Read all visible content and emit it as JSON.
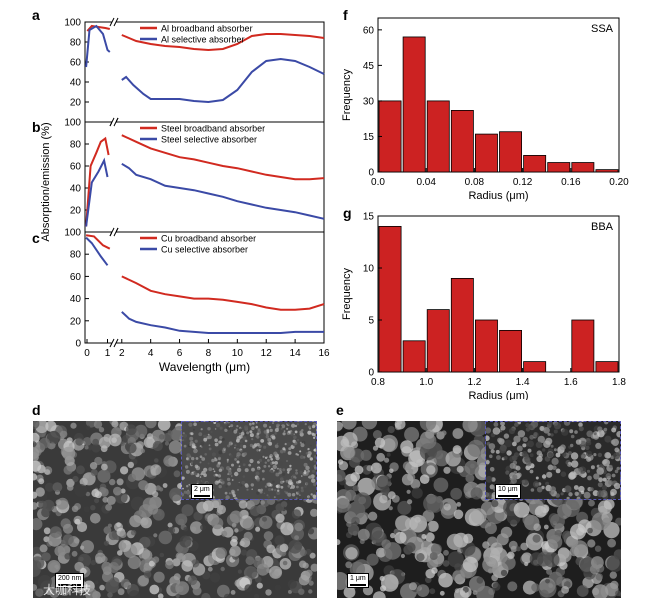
{
  "colors": {
    "red": "#d12a20",
    "blue": "#3b4aa6",
    "bar_fill": "#cc2222",
    "bar_stroke": "#000000"
  },
  "panels": {
    "a": "a",
    "b": "b",
    "c": "c",
    "d": "d",
    "e": "e",
    "f": "f",
    "g": "g"
  },
  "chart_data": [
    {
      "id": "abs_a",
      "type": "line",
      "panel": "a",
      "ylabel": "Absorption/emission (%)",
      "ylim": [
        0,
        100
      ],
      "yticks": [
        0,
        20,
        40,
        60,
        80,
        100
      ],
      "xlim": [
        0,
        16
      ],
      "series": [
        {
          "name": "Al broadband absorber",
          "color": "red",
          "segments": [
            [
              [
                0.1,
                91
              ],
              [
                0.3,
                96
              ],
              [
                0.6,
                95
              ],
              [
                0.9,
                94
              ],
              [
                1.1,
                93
              ]
            ],
            [
              [
                2,
                87
              ],
              [
                2.5,
                84
              ],
              [
                3,
                81
              ],
              [
                4,
                78
              ],
              [
                5,
                76
              ],
              [
                6,
                75
              ],
              [
                7,
                73
              ],
              [
                8,
                72
              ],
              [
                9,
                73
              ],
              [
                10,
                78
              ],
              [
                11,
                86
              ],
              [
                12,
                88
              ],
              [
                13,
                88
              ],
              [
                14,
                87
              ],
              [
                15,
                86
              ],
              [
                16,
                84
              ]
            ]
          ]
        },
        {
          "name": "Al selective absorber",
          "color": "blue",
          "segments": [
            [
              [
                0.05,
                55
              ],
              [
                0.2,
                92
              ],
              [
                0.5,
                96
              ],
              [
                0.8,
                88
              ],
              [
                1.0,
                72
              ],
              [
                1.1,
                70
              ]
            ],
            [
              [
                2,
                42
              ],
              [
                2.3,
                45
              ],
              [
                2.8,
                37
              ],
              [
                3.5,
                28
              ],
              [
                4,
                23
              ],
              [
                5,
                23
              ],
              [
                6,
                23
              ],
              [
                7,
                21
              ],
              [
                8,
                20
              ],
              [
                9,
                22
              ],
              [
                10,
                32
              ],
              [
                11,
                50
              ],
              [
                12,
                61
              ],
              [
                13,
                63
              ],
              [
                14,
                61
              ],
              [
                15,
                55
              ],
              [
                16,
                48
              ]
            ]
          ]
        }
      ]
    },
    {
      "id": "abs_b",
      "type": "line",
      "panel": "b",
      "ylim": [
        0,
        100
      ],
      "yticks": [
        0,
        20,
        40,
        60,
        80,
        100
      ],
      "xlim": [
        0,
        16
      ],
      "series": [
        {
          "name": "Steel broadband absorber",
          "color": "red",
          "segments": [
            [
              [
                0.05,
                5
              ],
              [
                0.25,
                60
              ],
              [
                0.5,
                72
              ],
              [
                0.7,
                82
              ],
              [
                0.9,
                85
              ],
              [
                1.05,
                70
              ]
            ],
            [
              [
                2,
                88
              ],
              [
                3,
                82
              ],
              [
                4,
                76
              ],
              [
                5,
                72
              ],
              [
                6,
                68
              ],
              [
                7,
                66
              ],
              [
                8,
                63
              ],
              [
                9,
                60
              ],
              [
                10,
                58
              ],
              [
                11,
                55
              ],
              [
                12,
                52
              ],
              [
                13,
                50
              ],
              [
                14,
                48
              ],
              [
                15,
                48
              ],
              [
                16,
                49
              ]
            ]
          ]
        },
        {
          "name": "Steel selective absorber",
          "color": "blue",
          "segments": [
            [
              [
                0.05,
                5
              ],
              [
                0.3,
                45
              ],
              [
                0.6,
                55
              ],
              [
                0.85,
                65
              ],
              [
                1.0,
                50
              ]
            ],
            [
              [
                2,
                62
              ],
              [
                2.5,
                58
              ],
              [
                3,
                52
              ],
              [
                4,
                48
              ],
              [
                5,
                42
              ],
              [
                6,
                40
              ],
              [
                7,
                38
              ],
              [
                8,
                35
              ],
              [
                9,
                32
              ],
              [
                10,
                28
              ],
              [
                11,
                25
              ],
              [
                12,
                22
              ],
              [
                13,
                20
              ],
              [
                14,
                18
              ],
              [
                15,
                15
              ],
              [
                16,
                12
              ]
            ]
          ]
        }
      ]
    },
    {
      "id": "abs_c",
      "type": "line",
      "panel": "c",
      "ylim": [
        0,
        100
      ],
      "yticks": [
        0,
        20,
        40,
        60,
        80,
        100
      ],
      "xlim": [
        0,
        16
      ],
      "xticks": [
        0,
        2,
        4,
        6,
        8,
        10,
        12,
        14,
        16
      ],
      "xlabel": "Wavelength (μm)",
      "series": [
        {
          "name": "Cu broadband absorber",
          "color": "red",
          "segments": [
            [
              [
                0.05,
                97
              ],
              [
                0.4,
                96
              ],
              [
                0.8,
                88
              ],
              [
                1.1,
                85
              ]
            ],
            [
              [
                2,
                60
              ],
              [
                3,
                54
              ],
              [
                4,
                47
              ],
              [
                5,
                44
              ],
              [
                6,
                42
              ],
              [
                7,
                40
              ],
              [
                8,
                40
              ],
              [
                9,
                39
              ],
              [
                10,
                37
              ],
              [
                11,
                35
              ],
              [
                12,
                32
              ],
              [
                13,
                30
              ],
              [
                14,
                30
              ],
              [
                15,
                31
              ],
              [
                16,
                35
              ]
            ]
          ]
        },
        {
          "name": "Cu selective absorber",
          "color": "blue",
          "segments": [
            [
              [
                0.05,
                95
              ],
              [
                0.3,
                90
              ],
              [
                0.7,
                78
              ],
              [
                1.0,
                70
              ]
            ],
            [
              [
                2,
                28
              ],
              [
                2.5,
                22
              ],
              [
                3,
                19
              ],
              [
                4,
                16
              ],
              [
                5,
                14
              ],
              [
                6,
                11
              ],
              [
                7,
                10
              ],
              [
                8,
                9
              ],
              [
                9,
                9
              ],
              [
                10,
                9
              ],
              [
                11,
                9
              ],
              [
                12,
                9
              ],
              [
                13,
                9
              ],
              [
                14,
                10
              ],
              [
                15,
                10
              ],
              [
                16,
                10
              ]
            ]
          ]
        }
      ]
    },
    {
      "id": "hist_f",
      "type": "bar",
      "panel": "f",
      "title": "SSA",
      "xlabel": "Radius (μm)",
      "ylabel": "Frequency",
      "xlim": [
        0,
        0.2
      ],
      "ylim": [
        0,
        65
      ],
      "xticks": [
        "0.0",
        "0.04",
        "0.08",
        "0.12",
        "0.16",
        "0.20"
      ],
      "yticks": [
        0,
        15,
        30,
        45,
        60
      ],
      "bin_starts": [
        0,
        0.02,
        0.04,
        0.06,
        0.08,
        0.1,
        0.12,
        0.14,
        0.16,
        0.18
      ],
      "bin_width": 0.02,
      "values": [
        30,
        57,
        30,
        26,
        16,
        17,
        7,
        4,
        4,
        1
      ]
    },
    {
      "id": "hist_g",
      "type": "bar",
      "panel": "g",
      "title": "BBA",
      "xlabel": "Radius (μm)",
      "ylabel": "Frequency",
      "xlim": [
        0.8,
        1.8
      ],
      "ylim": [
        0,
        15
      ],
      "xticks": [
        "0.8",
        "1.0",
        "1.2",
        "1.4",
        "1.6",
        "1.8"
      ],
      "yticks": [
        0,
        5,
        10,
        15
      ],
      "bin_starts": [
        0.8,
        0.9,
        1.0,
        1.1,
        1.2,
        1.3,
        1.4,
        1.5,
        1.6,
        1.7
      ],
      "bin_width": 0.1,
      "values": [
        14,
        3,
        6,
        9,
        5,
        4,
        1,
        0,
        5,
        1
      ]
    }
  ],
  "sem": {
    "d_scale": "200 nm",
    "d_inset_scale": "2 μm",
    "e_scale": "1 μm",
    "e_inset_scale": "10 μm"
  },
  "watermark": "大咖科技"
}
